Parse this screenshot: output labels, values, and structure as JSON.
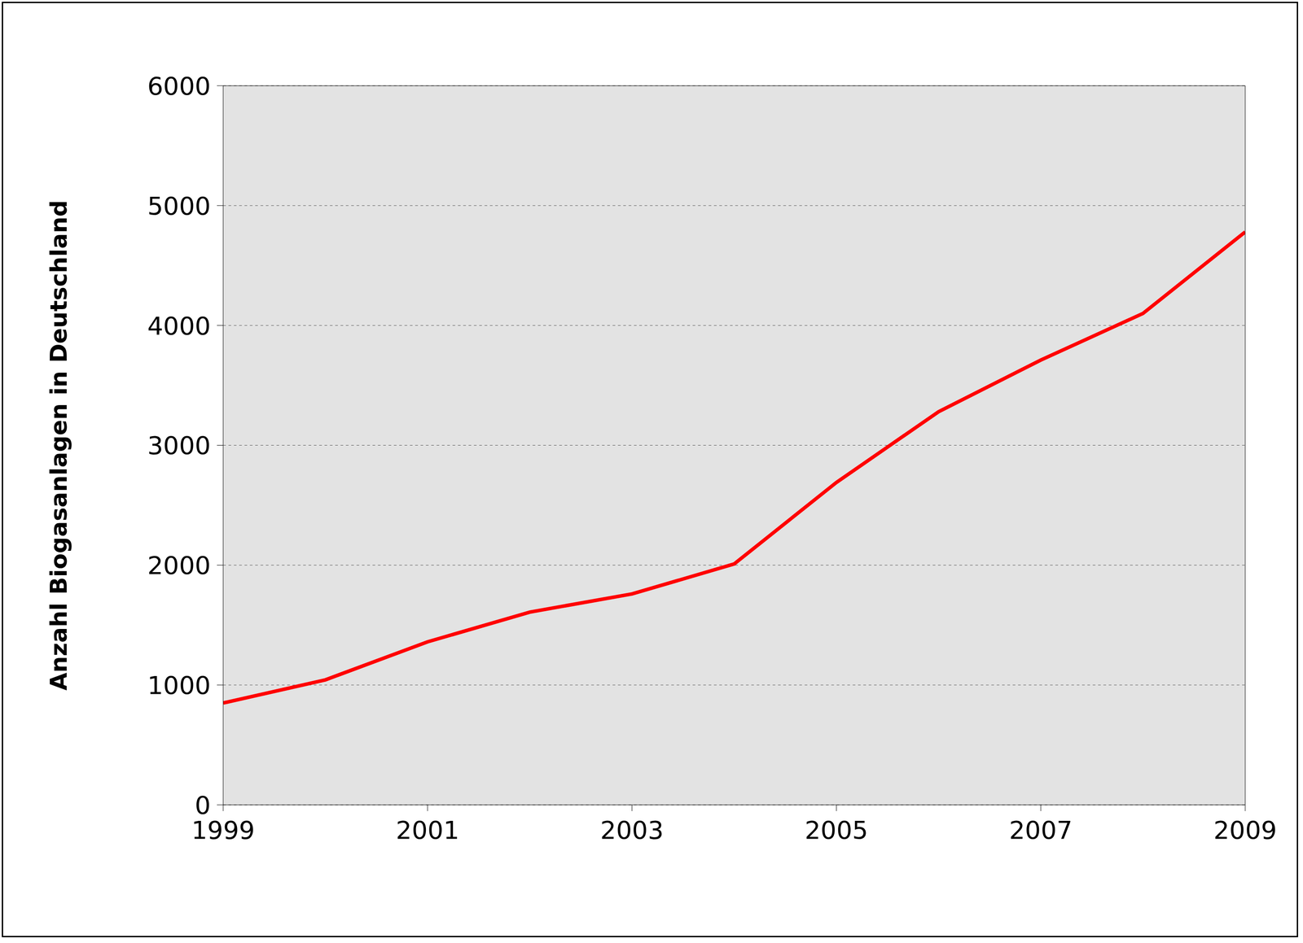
{
  "chart_data": {
    "type": "line",
    "y_label": "Anzahl Biogasanlagen in Deutschland",
    "x": [
      1999,
      2000,
      2001,
      2002,
      2003,
      2004,
      2005,
      2006,
      2007,
      2008,
      2009
    ],
    "values": [
      850,
      1043,
      1360,
      1608,
      1760,
      2010,
      2690,
      3280,
      3711,
      4100,
      4780
    ],
    "color": "#ff0000",
    "xlim": [
      1999,
      2009
    ],
    "xticks": [
      1999,
      2001,
      2003,
      2005,
      2007,
      2009
    ],
    "ylim": [
      0,
      6000
    ],
    "yticks": [
      0,
      1000,
      2000,
      3000,
      4000,
      5000,
      6000
    ],
    "grid": true,
    "line_style": "solid",
    "marker": "none"
  }
}
